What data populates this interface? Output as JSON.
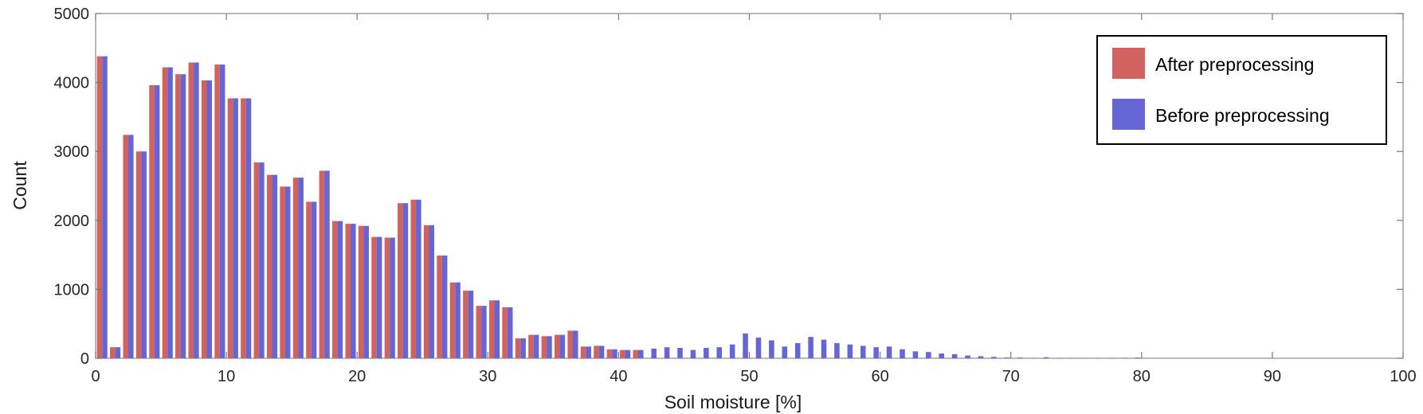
{
  "chart_data": {
    "type": "bar",
    "title": "",
    "xlabel": "Soil moisture [%]",
    "ylabel": "Count",
    "xlim": [
      0,
      100
    ],
    "ylim": [
      0,
      5000
    ],
    "xticks": [
      0,
      10,
      20,
      30,
      40,
      50,
      60,
      70,
      80,
      90,
      100
    ],
    "yticks": [
      0,
      1000,
      2000,
      3000,
      4000,
      5000
    ],
    "x_tick_labels": [
      "0",
      "10",
      "20",
      "30",
      "40",
      "50",
      "60",
      "70",
      "80",
      "90",
      "100"
    ],
    "y_tick_labels": [
      "0",
      "1000",
      "2000",
      "3000",
      "4000",
      "5000"
    ],
    "bin_width": 1,
    "grid": false,
    "legend_position": "top-right",
    "bins_x": [
      0,
      1,
      2,
      3,
      4,
      5,
      6,
      7,
      8,
      9,
      10,
      11,
      12,
      13,
      14,
      15,
      16,
      17,
      18,
      19,
      20,
      21,
      22,
      23,
      24,
      25,
      26,
      27,
      28,
      29,
      30,
      31,
      32,
      33,
      34,
      35,
      36,
      37,
      38,
      39,
      40,
      41,
      42,
      43,
      44,
      45,
      46,
      47,
      48,
      49,
      50,
      51,
      52,
      53,
      54,
      55,
      56,
      57,
      58,
      59,
      60,
      61,
      62,
      63,
      64,
      65,
      66,
      67,
      68,
      69,
      70,
      71,
      72,
      73,
      74,
      75,
      76,
      77,
      78,
      79
    ],
    "series": [
      {
        "name": "After preprocessing",
        "color": "#d0625f",
        "values": [
          4380,
          160,
          3240,
          3000,
          3960,
          4220,
          4120,
          4290,
          4030,
          4260,
          3770,
          3770,
          2840,
          2660,
          2490,
          2620,
          2270,
          2720,
          1990,
          1950,
          1920,
          1760,
          1750,
          2250,
          2300,
          1930,
          1490,
          1100,
          980,
          760,
          840,
          740,
          290,
          340,
          320,
          340,
          400,
          170,
          180,
          130,
          120,
          120,
          0,
          0,
          0,
          0,
          0,
          0,
          0,
          0,
          0,
          0,
          0,
          0,
          0,
          0,
          0,
          0,
          0,
          0,
          0,
          0,
          0,
          0,
          0,
          0,
          0,
          0,
          0,
          0,
          0,
          0,
          0,
          0,
          0,
          0,
          0,
          0,
          0,
          0
        ]
      },
      {
        "name": "Before preprocessing",
        "color": "#6565d4",
        "values": [
          4380,
          160,
          3240,
          3000,
          3960,
          4220,
          4120,
          4290,
          4030,
          4260,
          3770,
          3770,
          2840,
          2660,
          2490,
          2620,
          2270,
          2720,
          1990,
          1950,
          1920,
          1760,
          1750,
          2250,
          2300,
          1930,
          1490,
          1100,
          980,
          760,
          840,
          740,
          290,
          340,
          320,
          340,
          400,
          170,
          180,
          130,
          120,
          120,
          140,
          160,
          150,
          120,
          150,
          160,
          200,
          360,
          300,
          260,
          170,
          220,
          310,
          270,
          220,
          200,
          180,
          160,
          170,
          130,
          100,
          90,
          70,
          60,
          40,
          30,
          20,
          10,
          10,
          5,
          15,
          5,
          5,
          5,
          5,
          5,
          5,
          10
        ]
      }
    ]
  }
}
